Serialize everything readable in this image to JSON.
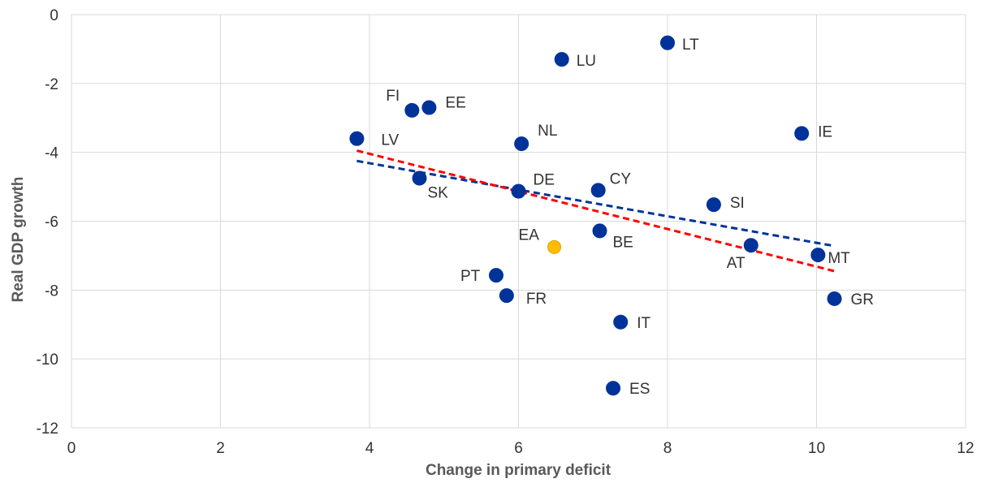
{
  "chart_data": {
    "type": "scatter",
    "title": "",
    "xlabel": "Change in primary deficit",
    "ylabel": "Real GDP growth",
    "xlim": [
      0,
      12
    ],
    "ylim": [
      -12,
      0
    ],
    "xticks": [
      0,
      2,
      4,
      6,
      8,
      10,
      12
    ],
    "yticks": [
      0,
      -2,
      -4,
      -6,
      -8,
      -10,
      -12
    ],
    "grid": true,
    "colors": {
      "country": "#003399",
      "ea": "#ffbc00",
      "trend_blue": "#003399",
      "trend_red": "#ff0000",
      "grid": "#d9d9d9"
    },
    "points": [
      {
        "label": "LV",
        "x": 3.83,
        "y": -3.6,
        "series": "country"
      },
      {
        "label": "FI",
        "x": 4.57,
        "y": -2.78,
        "series": "country"
      },
      {
        "label": "EE",
        "x": 4.8,
        "y": -2.7,
        "series": "country"
      },
      {
        "label": "SK",
        "x": 4.67,
        "y": -4.75,
        "series": "country"
      },
      {
        "label": "LU",
        "x": 6.58,
        "y": -1.3,
        "series": "country"
      },
      {
        "label": "LT",
        "x": 8.0,
        "y": -0.82,
        "series": "country"
      },
      {
        "label": "NL",
        "x": 6.04,
        "y": -3.75,
        "series": "country"
      },
      {
        "label": "DE",
        "x": 6.0,
        "y": -5.13,
        "series": "country"
      },
      {
        "label": "CY",
        "x": 7.07,
        "y": -5.1,
        "series": "country"
      },
      {
        "label": "IE",
        "x": 9.8,
        "y": -3.45,
        "series": "country"
      },
      {
        "label": "SI",
        "x": 8.62,
        "y": -5.52,
        "series": "country"
      },
      {
        "label": "BE",
        "x": 7.09,
        "y": -6.28,
        "series": "country"
      },
      {
        "label": "AT",
        "x": 9.12,
        "y": -6.7,
        "series": "country"
      },
      {
        "label": "MT",
        "x": 10.02,
        "y": -6.98,
        "series": "country"
      },
      {
        "label": "GR",
        "x": 10.24,
        "y": -8.25,
        "series": "country"
      },
      {
        "label": "PT",
        "x": 5.7,
        "y": -7.57,
        "series": "country"
      },
      {
        "label": "FR",
        "x": 5.84,
        "y": -8.16,
        "series": "country"
      },
      {
        "label": "IT",
        "x": 7.37,
        "y": -8.93,
        "series": "country"
      },
      {
        "label": "ES",
        "x": 7.27,
        "y": -10.85,
        "series": "country"
      },
      {
        "label": "EA",
        "x": 6.48,
        "y": -6.75,
        "series": "ea"
      }
    ],
    "trendlines": [
      {
        "name": "trend-blue",
        "color": "#003399",
        "x1": 3.83,
        "y1": -4.25,
        "x2": 10.24,
        "y2": -6.72
      },
      {
        "name": "trend-red",
        "color": "#ff0000",
        "x1": 3.83,
        "y1": -3.95,
        "x2": 10.24,
        "y2": -7.45
      }
    ]
  }
}
